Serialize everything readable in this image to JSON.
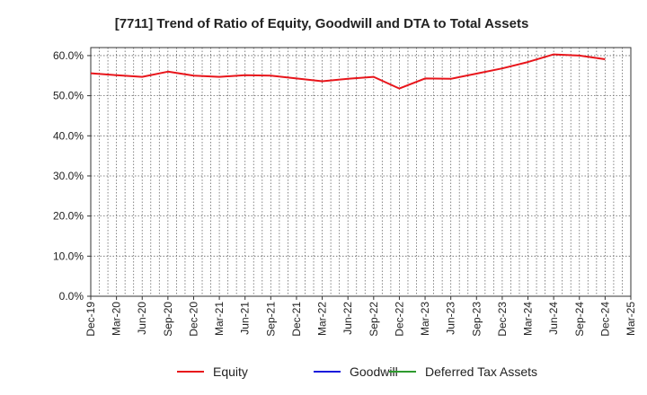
{
  "chart_data": {
    "type": "line",
    "title": "[7711]  Trend of Ratio of Equity, Goodwill and DTA to Total Assets",
    "xlabel": "",
    "ylabel": "",
    "ylim": [
      0,
      62
    ],
    "y_ticks": [
      0,
      10,
      20,
      30,
      40,
      50,
      60
    ],
    "y_tick_labels": [
      "0.0%",
      "10.0%",
      "20.0%",
      "30.0%",
      "40.0%",
      "50.0%",
      "60.0%"
    ],
    "grid": true,
    "legend_position": "bottom-center",
    "categories": [
      "Dec-19",
      "Mar-20",
      "Jun-20",
      "Sep-20",
      "Dec-20",
      "Mar-21",
      "Jun-21",
      "Sep-21",
      "Dec-21",
      "Mar-22",
      "Jun-22",
      "Sep-22",
      "Dec-22",
      "Mar-23",
      "Jun-23",
      "Sep-23",
      "Dec-23",
      "Mar-24",
      "Jun-24",
      "Sep-24",
      "Dec-24",
      "Mar-25"
    ],
    "series": [
      {
        "name": "Equity",
        "color": "#e8151b",
        "values": [
          55.6,
          55.1,
          54.7,
          56.0,
          55.0,
          54.7,
          55.1,
          55.0,
          54.3,
          53.6,
          54.2,
          54.7,
          51.8,
          54.3,
          54.2,
          55.5,
          56.8,
          58.4,
          60.3,
          60.0,
          59.1,
          null
        ]
      },
      {
        "name": "Goodwill",
        "color": "#1a1adc",
        "values": [
          null,
          null,
          null,
          null,
          null,
          null,
          null,
          null,
          null,
          null,
          null,
          null,
          null,
          null,
          null,
          null,
          null,
          null,
          null,
          null,
          null,
          null
        ]
      },
      {
        "name": "Deferred Tax Assets",
        "color": "#2e9a2e",
        "values": [
          null,
          null,
          null,
          null,
          null,
          null,
          null,
          null,
          null,
          null,
          null,
          null,
          null,
          null,
          null,
          null,
          null,
          null,
          null,
          null,
          null,
          null
        ]
      }
    ]
  }
}
